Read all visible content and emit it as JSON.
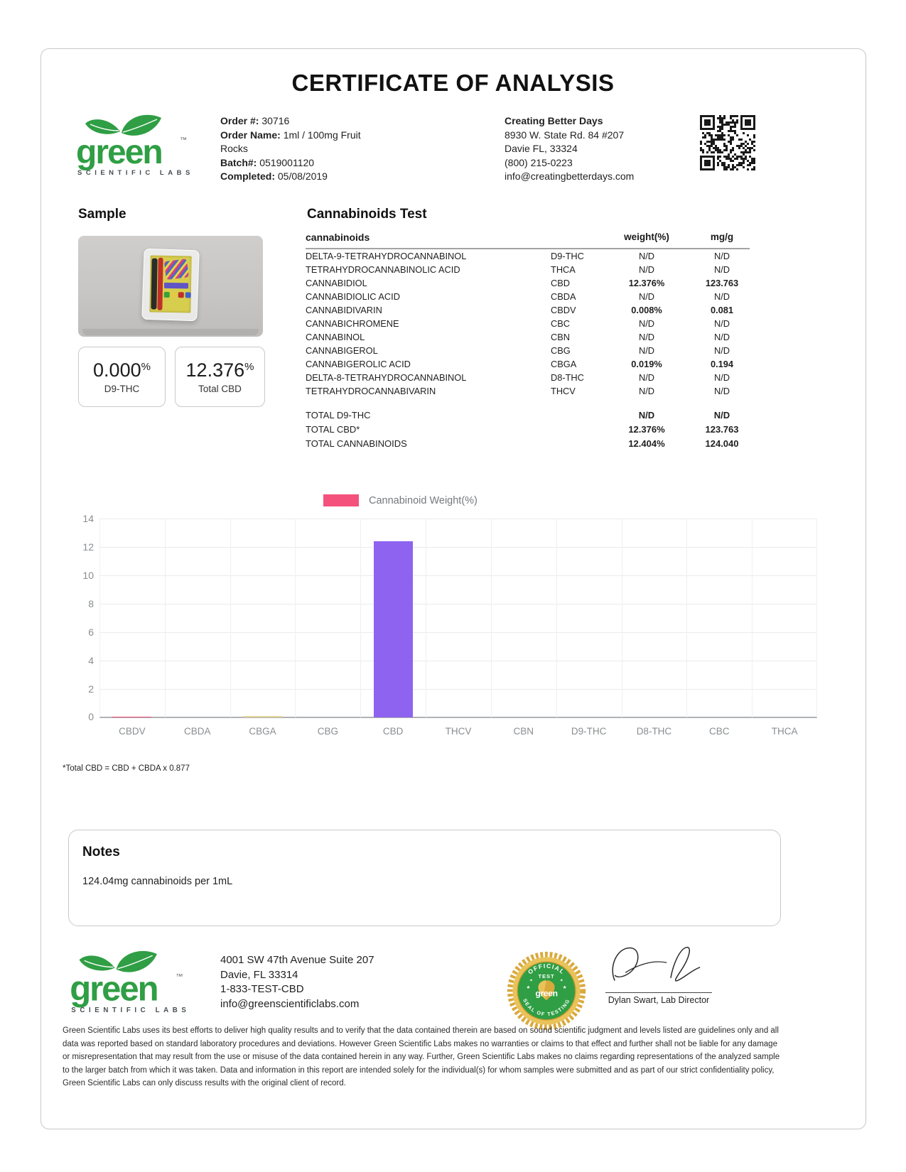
{
  "title": "CERTIFICATE OF ANALYSIS",
  "logo": {
    "word": "green",
    "tm": "™",
    "subtext": "SCIENTIFIC LABS"
  },
  "order_info": [
    {
      "label": "Order #:",
      "value": "30716"
    },
    {
      "label": "Order Name:",
      "value": "1ml / 100mg Fruit Rocks"
    },
    {
      "label": "Batch#:",
      "value": "0519001120"
    },
    {
      "label": "Completed:",
      "value": "05/08/2019"
    }
  ],
  "client": {
    "name": "Creating Better Days",
    "lines": [
      "8930 W. State Rd. 84 #207",
      "Davie FL, 33324",
      "(800) 215-0223",
      "info@creatingbetterdays.com"
    ]
  },
  "sample": {
    "heading": "Sample",
    "results": [
      {
        "value": "0.000",
        "unit": "%",
        "label": "D9-THC"
      },
      {
        "value": "12.376",
        "unit": "%",
        "label": "Total CBD"
      }
    ]
  },
  "cannabinoids_test": {
    "heading": "Cannabinoids Test",
    "columns": {
      "name": "cannabinoids",
      "weight": "weight(%)",
      "mgg": "mg/g"
    },
    "rows": [
      {
        "name": "DELTA-9-TETRAHYDROCANNABINOL",
        "abbr": "D9-THC",
        "weight": "N/D",
        "mgg": "N/D",
        "detected": false
      },
      {
        "name": "TETRAHYDROCANNABINOLIC ACID",
        "abbr": "THCA",
        "weight": "N/D",
        "mgg": "N/D",
        "detected": false
      },
      {
        "name": "CANNABIDIOL",
        "abbr": "CBD",
        "weight": "12.376%",
        "mgg": "123.763",
        "detected": true
      },
      {
        "name": "CANNABIDIOLIC ACID",
        "abbr": "CBDA",
        "weight": "N/D",
        "mgg": "N/D",
        "detected": false
      },
      {
        "name": "CANNABIDIVARIN",
        "abbr": "CBDV",
        "weight": "0.008%",
        "mgg": "0.081",
        "detected": true
      },
      {
        "name": "CANNABICHROMENE",
        "abbr": "CBC",
        "weight": "N/D",
        "mgg": "N/D",
        "detected": false
      },
      {
        "name": "CANNABINOL",
        "abbr": "CBN",
        "weight": "N/D",
        "mgg": "N/D",
        "detected": false
      },
      {
        "name": "CANNABIGEROL",
        "abbr": "CBG",
        "weight": "N/D",
        "mgg": "N/D",
        "detected": false
      },
      {
        "name": "CANNABIGEROLIC ACID",
        "abbr": "CBGA",
        "weight": "0.019%",
        "mgg": "0.194",
        "detected": true
      },
      {
        "name": "DELTA-8-TETRAHYDROCANNABINOL",
        "abbr": "D8-THC",
        "weight": "N/D",
        "mgg": "N/D",
        "detected": false
      },
      {
        "name": "TETRAHYDROCANNABIVARIN",
        "abbr": "THCV",
        "weight": "N/D",
        "mgg": "N/D",
        "detected": false
      }
    ],
    "totals": [
      {
        "name": "TOTAL D9-THC",
        "weight": "N/D",
        "mgg": "N/D"
      },
      {
        "name": "TOTAL CBD*",
        "weight": "12.376%",
        "mgg": "123.763"
      },
      {
        "name": "TOTAL CANNABINOIDS",
        "weight": "12.404%",
        "mgg": "124.040"
      }
    ]
  },
  "chart_data": {
    "type": "bar",
    "title": "",
    "legend": [
      {
        "label": "Cannabinoid Weight(%)",
        "color": "#f4517c"
      }
    ],
    "legend_position": "top-center",
    "categories": [
      "CBDV",
      "CBDA",
      "CBGA",
      "CBG",
      "CBD",
      "THCV",
      "CBN",
      "D9-THC",
      "D8-THC",
      "CBC",
      "THCA"
    ],
    "series": [
      {
        "name": "Cannabinoid Weight(%)",
        "values": [
          0.008,
          0,
          0.019,
          0,
          12.376,
          0,
          0,
          0,
          0,
          0,
          0
        ]
      }
    ],
    "bar_colors": [
      "#f4517c",
      "#cccccc",
      "#e3d49a",
      "#cccccc",
      "#8e63f0",
      "#cccccc",
      "#cccccc",
      "#cccccc",
      "#cccccc",
      "#cccccc",
      "#cccccc"
    ],
    "ylim": [
      0,
      14
    ],
    "yticks": [
      0,
      2,
      4,
      6,
      8,
      10,
      12,
      14
    ],
    "grid": true
  },
  "footnote": "*Total CBD = CBD + CBDA x 0.877",
  "notes": {
    "heading": "Notes",
    "text": "124.04mg cannabinoids per 1mL"
  },
  "seal": {
    "arc_top": "OFFICIAL",
    "line2": "TEST",
    "center": "green",
    "arc_bottom": "SEAL OF TESTING"
  },
  "footer": {
    "lines": [
      "4001 SW 47th Avenue Suite 207",
      "Davie, FL 33314",
      "1-833-TEST-CBD",
      "info@greenscientificlabs.com"
    ],
    "signatory": "Dylan Swart, Lab Director",
    "disclaimer": "Green Scientific Labs uses its best efforts to deliver high quality results and to verify that the data contained therein are based on sound scientific judgment and levels listed are guidelines only and all data was reported based on standard laboratory procedures and deviations. However Green Scientific Labs makes no warranties or claims to that effect and further shall not be liable for any damage or misrepresentation that may result from the use or misuse of the data contained herein in any way. Further, Green Scientific Labs makes no claims regarding representations of the analyzed sample to the larger batch from which it was taken. Data and information in this report are intended solely for the individual(s) for whom samples were submitted and as part of our strict confidentiality policy, Green Scientific Labs can only discuss results with the original client of record."
  }
}
